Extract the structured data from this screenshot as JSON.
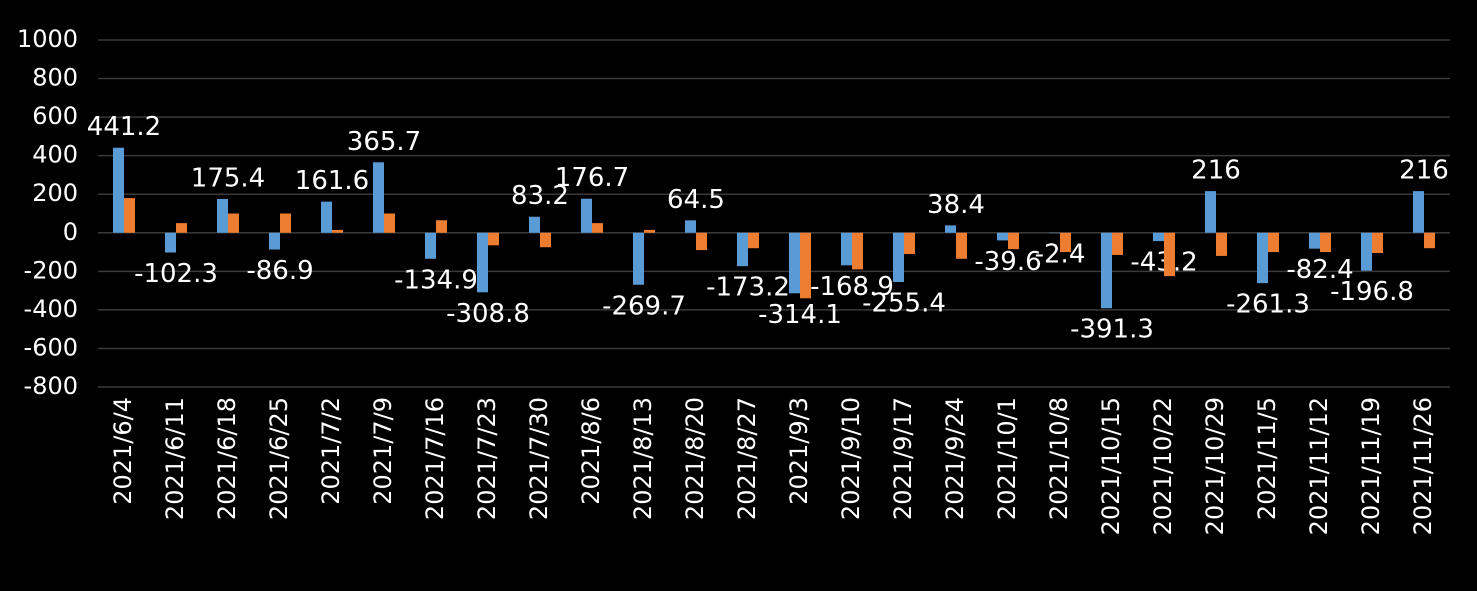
{
  "chart_data": {
    "type": "bar",
    "categories": [
      "2021/6/4",
      "2021/6/11",
      "2021/6/18",
      "2021/6/25",
      "2021/7/2",
      "2021/7/9",
      "2021/7/16",
      "2021/7/23",
      "2021/7/30",
      "2021/8/6",
      "2021/8/13",
      "2021/8/20",
      "2021/8/27",
      "2021/9/3",
      "2021/9/10",
      "2021/9/17",
      "2021/9/24",
      "2021/10/1",
      "2021/10/8",
      "2021/10/15",
      "2021/10/22",
      "2021/10/29",
      "2021/11/5",
      "2021/11/12",
      "2021/11/19",
      "2021/11/26"
    ],
    "series": [
      {
        "color": "#5b9bd5",
        "values": [
          441.2,
          -102.3,
          175.4,
          -86.9,
          161.6,
          365.7,
          -134.9,
          -308.8,
          83.2,
          176.7,
          -269.7,
          64.5,
          -173.2,
          -314.1,
          -168.9,
          -255.4,
          38.4,
          -39.6,
          -2.4,
          -391.3,
          -43.2,
          216,
          -261.3,
          -82.4,
          -196.8,
          216
        ],
        "data_labels": true
      },
      {
        "color": "#ed7d31",
        "values": [
          180,
          50,
          100,
          100,
          15,
          100,
          65,
          -65,
          -75,
          50,
          15,
          -90,
          -80,
          -340,
          -190,
          -110,
          -135,
          -85,
          -100,
          -115,
          -225,
          -120,
          -100,
          -100,
          -105,
          -80
        ],
        "data_labels": false
      }
    ],
    "ylim": [
      -800,
      1000
    ],
    "yticks": [
      -800,
      -600,
      -400,
      -200,
      0,
      200,
      400,
      600,
      800,
      1000
    ],
    "grid": true
  }
}
